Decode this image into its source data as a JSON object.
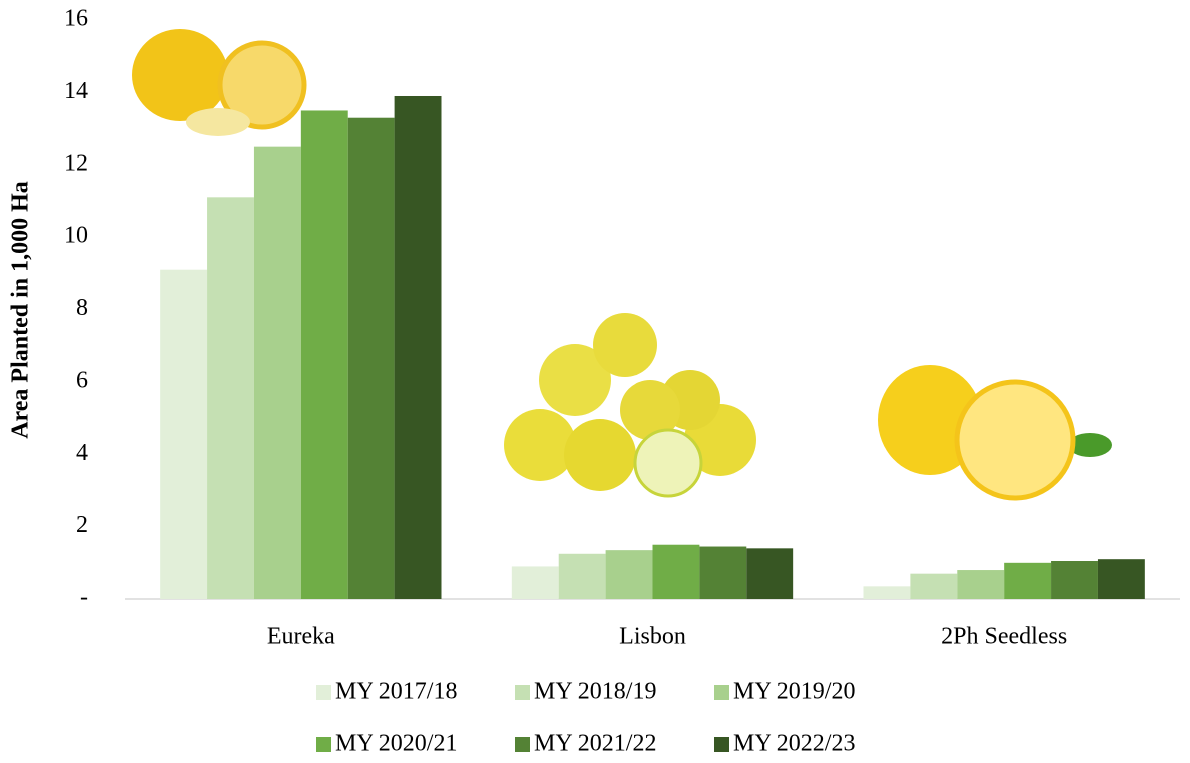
{
  "chart_data": {
    "type": "bar",
    "y_label": "Area Planted in 1,000 Ha",
    "categories": [
      "Eureka",
      "Lisbon",
      "2Ph Seedless"
    ],
    "series": [
      {
        "name": "MY 2017/18",
        "color": "#e2efd9",
        "values": [
          9.1,
          0.9,
          0.35
        ]
      },
      {
        "name": "MY 2018/19",
        "color": "#c5e0b3",
        "values": [
          11.1,
          1.25,
          0.7
        ]
      },
      {
        "name": "MY 2019/20",
        "color": "#a8d08d",
        "values": [
          12.5,
          1.35,
          0.8
        ]
      },
      {
        "name": "MY 2020/21",
        "color": "#70ad47",
        "values": [
          13.5,
          1.5,
          1.0
        ]
      },
      {
        "name": "MY 2021/22",
        "color": "#548235",
        "values": [
          13.3,
          1.45,
          1.05
        ]
      },
      {
        "name": "MY 2022/23",
        "color": "#375623",
        "values": [
          13.9,
          1.4,
          1.1
        ]
      }
    ],
    "ylim": [
      0,
      16
    ],
    "yticks": [
      {
        "value": 0,
        "label": "-"
      },
      2,
      4,
      6,
      8,
      10,
      12,
      14,
      16
    ],
    "grid": false
  }
}
